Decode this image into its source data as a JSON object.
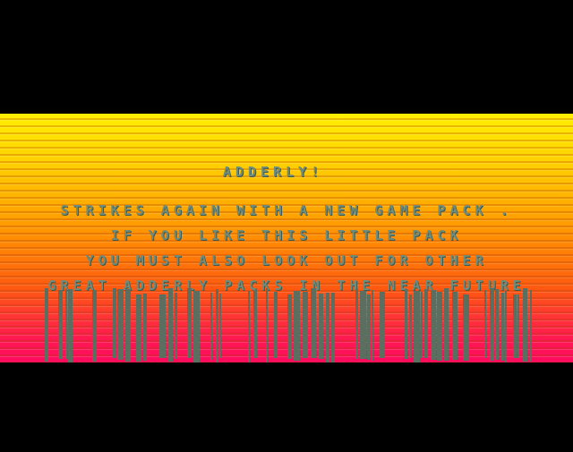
{
  "screen": {
    "title": "ADDERLY!",
    "lines": [
      "STRIKES AGAIN WITH A NEW GAME PACK .",
      "IF YOU LIKE THIS LITTLE PACK",
      "YOU MUST ALSO LOOK OUT FOR OTHER",
      "GREAT ADDERLY PACKS IN THE NEAR FUTURE"
    ]
  }
}
